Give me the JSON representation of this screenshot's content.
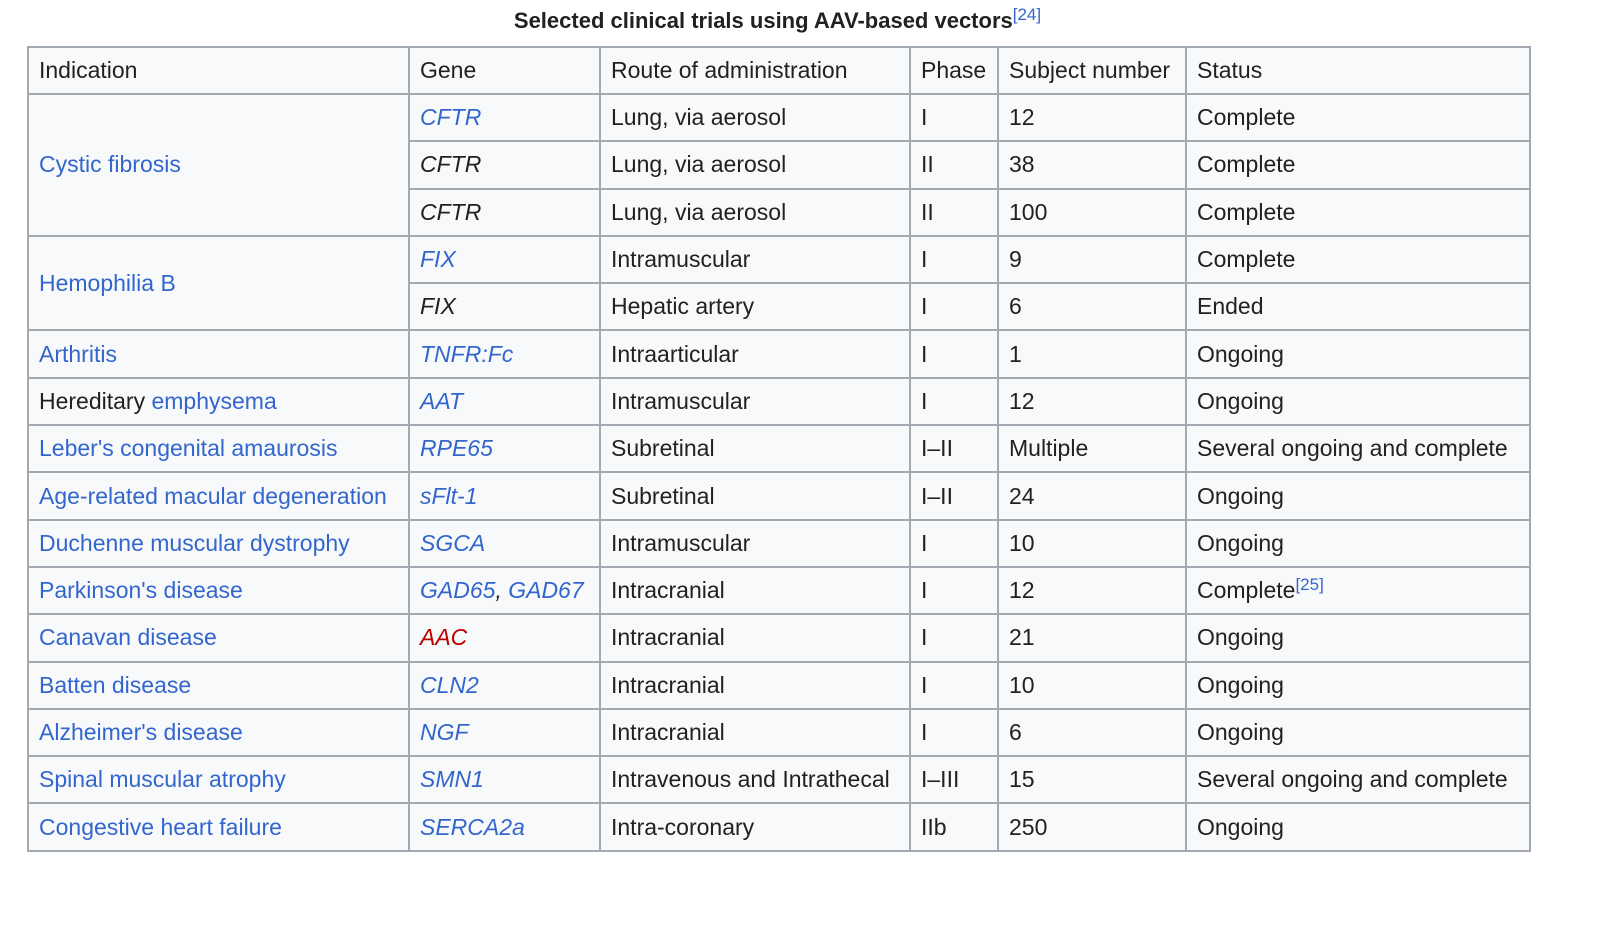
{
  "title": "Selected clinical trials using AAV-based vectors",
  "title_ref": "[24]",
  "link_colors": {
    "link": "#3366cc",
    "missing": "#ba0000"
  },
  "columns": [
    "Indication",
    "Gene",
    "Route of administration",
    "Phase",
    "Subject number",
    "Status"
  ],
  "groups": [
    {
      "indication": [
        {
          "text": "Cystic fibrosis",
          "link": "link"
        }
      ],
      "trials": [
        {
          "gene": [
            {
              "text": "CFTR",
              "link": "link"
            }
          ],
          "route": "Lung, via aerosol",
          "phase": "I",
          "subjects": 12,
          "status": "Complete"
        },
        {
          "gene": [
            {
              "text": "CFTR"
            }
          ],
          "route": "Lung, via aerosol",
          "phase": "II",
          "subjects": 38,
          "status": "Complete"
        },
        {
          "gene": [
            {
              "text": "CFTR"
            }
          ],
          "route": "Lung, via aerosol",
          "phase": "II",
          "subjects": 100,
          "status": "Complete"
        }
      ]
    },
    {
      "indication": [
        {
          "text": "Hemophilia B",
          "link": "link"
        }
      ],
      "trials": [
        {
          "gene": [
            {
              "text": "FIX",
              "link": "link"
            }
          ],
          "route": "Intramuscular",
          "phase": "I",
          "subjects": 9,
          "status": "Complete"
        },
        {
          "gene": [
            {
              "text": "FIX"
            }
          ],
          "route": "Hepatic artery",
          "phase": "I",
          "subjects": 6,
          "status": "Ended"
        }
      ]
    },
    {
      "indication": [
        {
          "text": "Arthritis",
          "link": "link"
        }
      ],
      "trials": [
        {
          "gene": [
            {
              "text": "TNFR:Fc",
              "link": "link"
            }
          ],
          "route": "Intraarticular",
          "phase": "I",
          "subjects": 1,
          "status": "Ongoing"
        }
      ]
    },
    {
      "indication": [
        {
          "text": "Hereditary "
        },
        {
          "text": "emphysema",
          "link": "link"
        }
      ],
      "trials": [
        {
          "gene": [
            {
              "text": "AAT",
              "link": "link"
            }
          ],
          "route": "Intramuscular",
          "phase": "I",
          "subjects": 12,
          "status": "Ongoing"
        }
      ]
    },
    {
      "indication": [
        {
          "text": "Leber's congenital amaurosis",
          "link": "link"
        }
      ],
      "trials": [
        {
          "gene": [
            {
              "text": "RPE65",
              "link": "link"
            }
          ],
          "route": "Subretinal",
          "phase": "I–II",
          "subjects": "Multiple",
          "status": "Several ongoing and complete"
        }
      ]
    },
    {
      "indication": [
        {
          "text": "Age-related macular degeneration",
          "link": "link"
        }
      ],
      "trials": [
        {
          "gene": [
            {
              "text": "sFlt-1",
              "link": "link"
            }
          ],
          "route": "Subretinal",
          "phase": "I–II",
          "subjects": 24,
          "status": "Ongoing"
        }
      ]
    },
    {
      "indication": [
        {
          "text": "Duchenne muscular dystrophy",
          "link": "link"
        }
      ],
      "trials": [
        {
          "gene": [
            {
              "text": "SGCA",
              "link": "link"
            }
          ],
          "route": "Intramuscular",
          "phase": "I",
          "subjects": 10,
          "status": "Ongoing"
        }
      ]
    },
    {
      "indication": [
        {
          "text": "Parkinson's disease",
          "link": "link"
        }
      ],
      "trials": [
        {
          "gene": [
            {
              "text": "GAD65",
              "link": "link"
            },
            {
              "text": ", "
            },
            {
              "text": "GAD67",
              "link": "link"
            }
          ],
          "route": "Intracranial",
          "phase": "I",
          "subjects": 12,
          "status": "Complete",
          "status_ref": "[25]"
        }
      ]
    },
    {
      "indication": [
        {
          "text": "Canavan disease",
          "link": "link"
        }
      ],
      "trials": [
        {
          "gene": [
            {
              "text": "AAC",
              "link": "missing"
            }
          ],
          "route": "Intracranial",
          "phase": "I",
          "subjects": 21,
          "status": "Ongoing"
        }
      ]
    },
    {
      "indication": [
        {
          "text": "Batten disease",
          "link": "link"
        }
      ],
      "trials": [
        {
          "gene": [
            {
              "text": "CLN2",
              "link": "link"
            }
          ],
          "route": "Intracranial",
          "phase": "I",
          "subjects": 10,
          "status": "Ongoing"
        }
      ]
    },
    {
      "indication": [
        {
          "text": "Alzheimer's disease",
          "link": "link"
        }
      ],
      "trials": [
        {
          "gene": [
            {
              "text": "NGF",
              "link": "link"
            }
          ],
          "route": "Intracranial",
          "phase": "I",
          "subjects": 6,
          "status": "Ongoing"
        }
      ]
    },
    {
      "indication": [
        {
          "text": "Spinal muscular atrophy",
          "link": "link"
        }
      ],
      "trials": [
        {
          "gene": [
            {
              "text": "SMN1",
              "link": "link"
            }
          ],
          "route": "Intravenous and Intrathecal",
          "phase": "I–III",
          "subjects": 15,
          "status": "Several ongoing and complete"
        }
      ]
    },
    {
      "indication": [
        {
          "text": "Congestive heart failure",
          "link": "link"
        }
      ],
      "trials": [
        {
          "gene": [
            {
              "text": "SERCA2a",
              "link": "link"
            }
          ],
          "route": "Intra-coronary",
          "phase": "IIb",
          "subjects": 250,
          "status": "Ongoing"
        }
      ]
    }
  ]
}
